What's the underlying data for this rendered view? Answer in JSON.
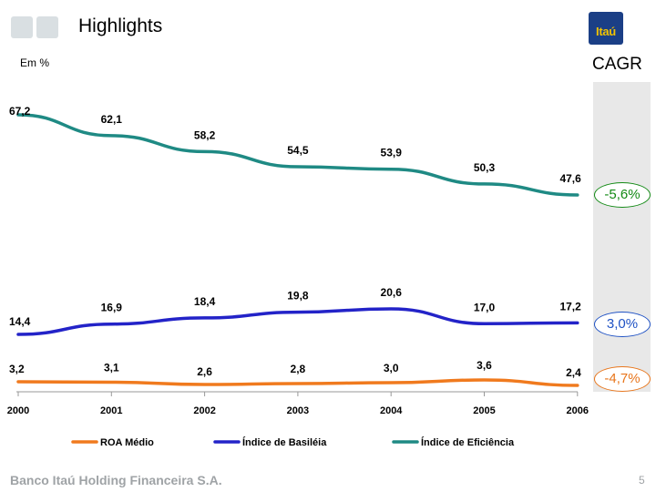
{
  "header": {
    "title": "Highlights",
    "unit": "Em %",
    "logo_text": "Itaú"
  },
  "cagr": {
    "label": "CAGR",
    "values": [
      {
        "series": "Índice de Eficiência",
        "text": "-5,6%",
        "color": "#138a15"
      },
      {
        "series": "Índice de Basiléia",
        "text": "3,0%",
        "color": "#1f52c4"
      },
      {
        "series": "ROA Médio",
        "text": "-4,7%",
        "color": "#e8761c"
      }
    ]
  },
  "chart_data": {
    "type": "line",
    "x": [
      "2000",
      "2001",
      "2002",
      "2003",
      "2004",
      "2005",
      "2006"
    ],
    "series": [
      {
        "name": "Índice de Eficiência",
        "color": "#1f8a84",
        "values": [
          67.2,
          62.1,
          58.2,
          54.5,
          53.9,
          50.3,
          47.6
        ],
        "labels": [
          "67,2",
          "62,1",
          "58,2",
          "54,5",
          "53,9",
          "50,3",
          "47,6"
        ]
      },
      {
        "name": "Índice de Basiléia",
        "color": "#2323c8",
        "values": [
          14.4,
          16.9,
          18.4,
          19.8,
          20.6,
          17.0,
          17.2
        ],
        "labels": [
          "14,4",
          "16,9",
          "18,4",
          "19,8",
          "20,6",
          "17,0",
          "17,2"
        ]
      },
      {
        "name": "ROA Médio",
        "color": "#f07a1e",
        "values": [
          3.2,
          3.1,
          2.6,
          2.8,
          3.0,
          3.6,
          2.4
        ],
        "labels": [
          "3,2",
          "3,1",
          "2,6",
          "2,8",
          "3,0",
          "3,6",
          "2,4"
        ]
      }
    ],
    "legend": [
      {
        "series": "ROA Médio",
        "label": "ROA Médio"
      },
      {
        "series": "Índice de Basiléia",
        "label": "Índice de Basiléia"
      },
      {
        "series": "Índice de Eficiência",
        "label": "Índice de Eficiência"
      }
    ]
  },
  "footer": {
    "company": "Banco Itaú Holding Financeira S.A.",
    "page": "5"
  }
}
